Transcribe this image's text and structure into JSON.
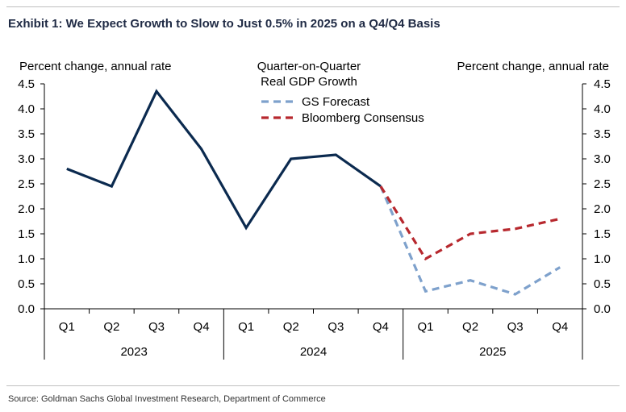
{
  "header": {
    "title": "Exhibit 1: We Expect Growth to Slow to Just 0.5% in 2025 on a Q4/Q4 Basis"
  },
  "footer": {
    "source": "Source: Goldman Sachs Global Investment Research, Department of Commerce"
  },
  "chart_data": {
    "type": "line",
    "title": "Quarter-on-Quarter Real GDP Growth",
    "left_axis_label": "Percent change, annual rate",
    "right_axis_label": "Percent change, annual rate",
    "ylim": [
      0,
      4.5
    ],
    "y_ticks": [
      "0.0",
      "0.5",
      "1.0",
      "1.5",
      "2.0",
      "2.5",
      "3.0",
      "3.5",
      "4.0",
      "4.5"
    ],
    "categories": [
      "Q1",
      "Q2",
      "Q3",
      "Q4",
      "Q1",
      "Q2",
      "Q3",
      "Q4",
      "Q1",
      "Q2",
      "Q3",
      "Q4"
    ],
    "year_groups": [
      {
        "label": "2023",
        "span": 4
      },
      {
        "label": "2024",
        "span": 4
      },
      {
        "label": "2025",
        "span": 4
      }
    ],
    "grid": false,
    "legend_position": "top-center",
    "series": [
      {
        "key": "actual",
        "values": [
          2.8,
          2.45,
          4.35,
          3.2,
          1.62,
          3.0,
          3.08,
          2.45,
          null,
          null,
          null,
          null
        ],
        "color": "#0b2a4f",
        "dash": "solid"
      },
      {
        "key": "gs",
        "name": "GS Forecast",
        "values": [
          null,
          null,
          null,
          null,
          null,
          null,
          null,
          2.45,
          0.35,
          0.57,
          0.29,
          0.83
        ],
        "color": "#7ea1cc",
        "dash": "dashed"
      },
      {
        "key": "bbg",
        "name": "Bloomberg Consensus",
        "values": [
          null,
          null,
          null,
          null,
          null,
          null,
          null,
          2.45,
          1.0,
          1.5,
          1.6,
          1.8
        ],
        "color": "#b7282e",
        "dash": "dashed"
      }
    ]
  }
}
